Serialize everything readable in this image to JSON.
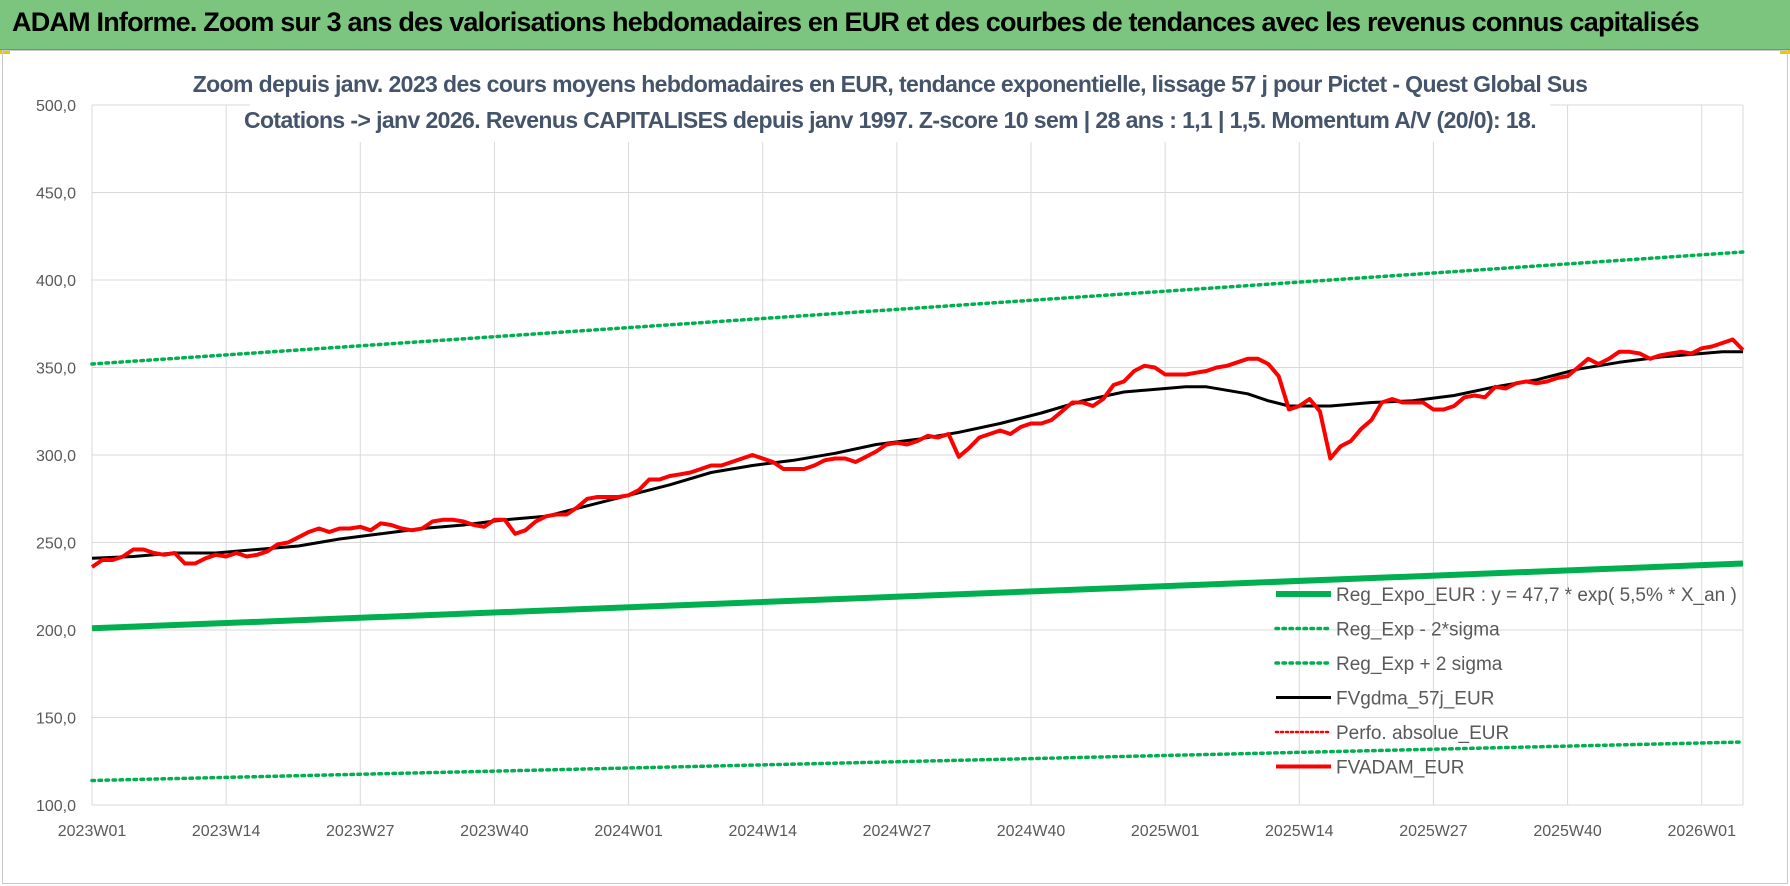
{
  "banner": {
    "title": "ADAM Informe. Zoom sur 3 ans des valorisations hebdomadaires en EUR et des courbes de tendances avec les revenus connus capitalisés"
  },
  "colors": {
    "banner": "#7cc57e",
    "trend": "#00b050",
    "price": "#ff0000",
    "smooth": "#000000",
    "title": "#44546a",
    "grid": "#d9d9d9",
    "tick": "#595959"
  },
  "chart_data": {
    "type": "line",
    "title_line1": "Zoom depuis janv. 2023 des cours moyens hebdomadaires en EUR, tendance exponentielle, lissage 57 j pour Pictet - Quest Global Sus",
    "title_line2": "Cotations -> janv 2026. Revenus CAPITALISES depuis janv 1997. Z-score 10 sem | 28 ans : 1,1 | 1,5. Momentum A/V (20/0): 18.",
    "xlabel": "",
    "ylabel": "",
    "ylim": [
      100,
      500
    ],
    "yticks": [
      "100,0",
      "150,0",
      "200,0",
      "250,0",
      "300,0",
      "350,0",
      "400,0",
      "450,0",
      "500,0"
    ],
    "x_range_weeks": [
      0,
      160
    ],
    "xticks": [
      {
        "week": 0,
        "label": "2023W01"
      },
      {
        "week": 13,
        "label": "2023W14"
      },
      {
        "week": 26,
        "label": "2023W27"
      },
      {
        "week": 39,
        "label": "2023W40"
      },
      {
        "week": 52,
        "label": "2024W01"
      },
      {
        "week": 65,
        "label": "2024W14"
      },
      {
        "week": 78,
        "label": "2024W27"
      },
      {
        "week": 91,
        "label": "2024W40"
      },
      {
        "week": 104,
        "label": "2025W01"
      },
      {
        "week": 117,
        "label": "2025W14"
      },
      {
        "week": 130,
        "label": "2025W27"
      },
      {
        "week": 143,
        "label": "2025W40"
      },
      {
        "week": 156,
        "label": "2026W01"
      }
    ],
    "grid": true,
    "legend_position": "bottom-right",
    "series": [
      {
        "name": "Reg_Expo_EUR : y = 47,7 * exp( 5,5% *  X_an )",
        "style": "solid-thick-green",
        "x": [
          0,
          160
        ],
        "values": [
          201,
          238
        ]
      },
      {
        "name": "Reg_Exp - 2*sigma",
        "style": "dotted-green",
        "x": [
          0,
          160
        ],
        "values": [
          114,
          136
        ]
      },
      {
        "name": "Reg_Exp + 2 sigma",
        "style": "dotted-green",
        "x": [
          0,
          160
        ],
        "values": [
          352,
          416
        ]
      },
      {
        "name": "FVgdma_57j_EUR",
        "style": "solid-black",
        "x": [
          0,
          4,
          8,
          12,
          16,
          20,
          24,
          28,
          32,
          36,
          40,
          44,
          48,
          52,
          56,
          60,
          64,
          68,
          72,
          76,
          80,
          84,
          88,
          92,
          96,
          100,
          104,
          106,
          108,
          110,
          112,
          114,
          116,
          118,
          120,
          124,
          128,
          132,
          136,
          140,
          144,
          148,
          152,
          156,
          158,
          160
        ],
        "values": [
          241,
          242,
          244,
          244,
          246,
          248,
          252,
          255,
          258,
          260,
          263,
          265,
          271,
          277,
          283,
          290,
          294,
          297,
          301,
          306,
          309,
          313,
          318,
          324,
          331,
          336,
          338,
          339,
          339,
          337,
          335,
          331,
          328,
          328,
          328,
          330,
          331,
          334,
          339,
          343,
          349,
          353,
          356,
          358,
          359,
          359
        ]
      },
      {
        "name": "Perfo. absolue_EUR",
        "style": "dotted-red",
        "x": [],
        "values": []
      },
      {
        "name": "FVADAM_EUR",
        "style": "solid-thick-red",
        "x": [
          0,
          1,
          2,
          3,
          4,
          5,
          6,
          7,
          8,
          9,
          10,
          11,
          12,
          13,
          14,
          15,
          16,
          17,
          18,
          19,
          20,
          21,
          22,
          23,
          24,
          25,
          26,
          27,
          28,
          29,
          30,
          31,
          32,
          33,
          34,
          35,
          36,
          37,
          38,
          39,
          40,
          41,
          42,
          43,
          44,
          45,
          46,
          47,
          48,
          49,
          50,
          51,
          52,
          53,
          54,
          55,
          56,
          57,
          58,
          59,
          60,
          61,
          62,
          63,
          64,
          65,
          66,
          67,
          68,
          69,
          70,
          71,
          72,
          73,
          74,
          75,
          76,
          77,
          78,
          79,
          80,
          81,
          82,
          83,
          84,
          85,
          86,
          87,
          88,
          89,
          90,
          91,
          92,
          93,
          94,
          95,
          96,
          97,
          98,
          99,
          100,
          101,
          102,
          103,
          104,
          105,
          106,
          107,
          108,
          109,
          110,
          111,
          112,
          113,
          114,
          115,
          116,
          117,
          118,
          119,
          120,
          121,
          122,
          123,
          124,
          125,
          126,
          127,
          128,
          129,
          130,
          131,
          132,
          133,
          134,
          135,
          136,
          137,
          138,
          139,
          140,
          141,
          142,
          143,
          144,
          145,
          146,
          147,
          148,
          149,
          150,
          151,
          152,
          153,
          154,
          155,
          156,
          157,
          158,
          159,
          160
        ],
        "values": [
          236,
          240,
          240,
          242,
          246,
          246,
          244,
          243,
          244,
          238,
          238,
          241,
          243,
          242,
          244,
          242,
          243,
          245,
          249,
          250,
          253,
          256,
          258,
          256,
          258,
          258,
          259,
          257,
          261,
          260,
          258,
          257,
          258,
          262,
          263,
          263,
          262,
          260,
          259,
          263,
          263,
          255,
          257,
          262,
          265,
          266,
          266,
          270,
          275,
          276,
          276,
          276,
          277,
          280,
          286,
          286,
          288,
          289,
          290,
          292,
          294,
          294,
          296,
          298,
          300,
          298,
          296,
          292,
          292,
          292,
          294,
          297,
          298,
          298,
          296,
          299,
          302,
          306,
          307,
          306,
          308,
          311,
          310,
          312,
          299,
          304,
          310,
          312,
          314,
          312,
          316,
          318,
          318,
          320,
          325,
          330,
          330,
          328,
          332,
          340,
          342,
          348,
          351,
          350,
          346,
          346,
          346,
          347,
          348,
          350,
          351,
          353,
          355,
          355,
          352,
          345,
          326,
          328,
          332,
          325,
          298,
          305,
          308,
          315,
          320,
          330,
          332,
          330,
          330,
          330,
          326,
          326,
          328,
          333,
          334,
          333,
          339,
          338,
          341,
          342,
          341,
          342,
          344,
          345,
          350,
          355,
          352,
          355,
          359,
          359,
          358,
          355,
          357,
          358,
          359,
          358,
          361,
          362,
          364,
          366,
          360
        ]
      }
    ]
  }
}
